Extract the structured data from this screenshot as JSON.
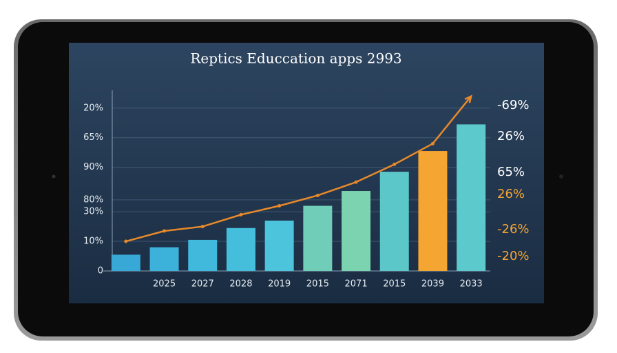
{
  "chart_data": {
    "type": "bar-line",
    "title": "Reptics Educcation apps 2993",
    "categories": [
      null,
      "2025",
      "2027",
      "2028",
      "2019",
      "2015",
      "2071",
      "2015",
      "2039",
      "2033"
    ],
    "series": [
      {
        "type": "bar",
        "colors": [
          "#38a9d6",
          "#3cb2da",
          "#40b9dc",
          "#45bedc",
          "#4bc4dc",
          "#6fcdb8",
          "#7bd3b0",
          "#5cc7c8",
          "#f5a532",
          "#5cc9cc"
        ],
        "values": [
          5.5,
          8,
          10.5,
          14.5,
          17,
          22,
          27,
          33.5,
          40.5,
          49.5
        ]
      },
      {
        "type": "line",
        "color": "#e8892a",
        "values": [
          10,
          13.5,
          15,
          19,
          22,
          25.5,
          30,
          36,
          43,
          59
        ]
      }
    ],
    "ylim": [
      0,
      61
    ],
    "yticks": [
      {
        "value": 55,
        "label": "20%"
      },
      {
        "value": 45,
        "label": "65%"
      },
      {
        "value": 35,
        "label": "90%"
      },
      {
        "value": 24,
        "label": "80%"
      },
      {
        "value": 20,
        "label": "30%"
      },
      {
        "value": 10,
        "label": "10%"
      },
      0
    ],
    "grid": true,
    "annotations": [
      {
        "text": "-69%",
        "color": "#ffffff"
      },
      {
        "text": "26%",
        "color": "#ffffff"
      },
      {
        "text": "65%",
        "color": "#ffffff"
      },
      {
        "text": "26%",
        "color": "#f5a532"
      },
      {
        "text": "-26%",
        "color": "#f5a532"
      },
      {
        "text": "-20%",
        "color": "#f5a532"
      }
    ]
  }
}
